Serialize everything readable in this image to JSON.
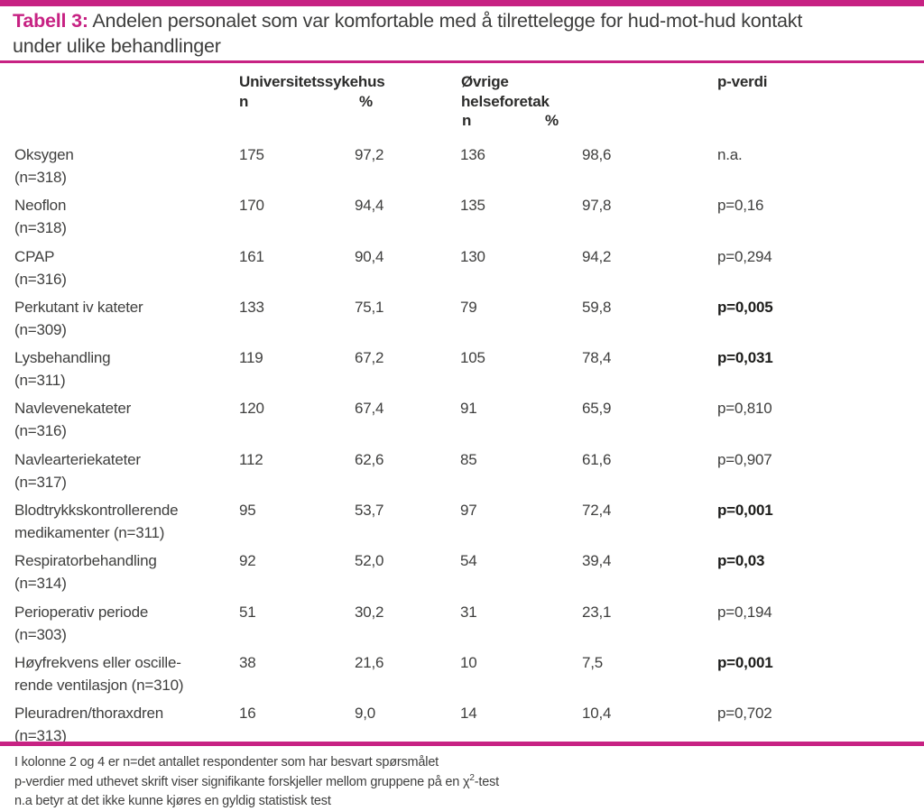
{
  "colors": {
    "accent": "#c72283"
  },
  "title": {
    "label": "Tabell 3:",
    "line1": " Andelen personalet som var komfortable med å tilrettelegge for hud-mot-hud kontakt",
    "line2": "under ulike behandlinger"
  },
  "header": {
    "group1": "Universitetssykehus",
    "group1_n": "n",
    "group1_pct": "%",
    "group2_line1": "Øvrige",
    "group2_line2": "helseforetak",
    "group2_n": "n",
    "group2_pct": "%",
    "pvalue": "p-verdi"
  },
  "table": {
    "rows": [
      {
        "label1": "Oksygen",
        "label2": "(n=318)",
        "n1": "175",
        "pct1": "97,2",
        "n2": "136",
        "pct2": "98,6",
        "p": "n.a.",
        "significant": false
      },
      {
        "label1": "Neoflon",
        "label2": "(n=318)",
        "n1": "170",
        "pct1": "94,4",
        "n2": "135",
        "pct2": "97,8",
        "p": "p=0,16",
        "significant": false
      },
      {
        "label1": "CPAP",
        "label2": "(n=316)",
        "n1": "161",
        "pct1": "90,4",
        "n2": "130",
        "pct2": "94,2",
        "p": "p=0,294",
        "significant": false
      },
      {
        "label1": "Perkutant iv kateter",
        "label2": "(n=309)",
        "n1": "133",
        "pct1": "75,1",
        "n2": "79",
        "pct2": "59,8",
        "p": "p=0,005",
        "significant": true
      },
      {
        "label1": "Lysbehandling",
        "label2": "(n=311)",
        "n1": "119",
        "pct1": "67,2",
        "n2": "105",
        "pct2": "78,4",
        "p": "p=0,031",
        "significant": true
      },
      {
        "label1": "Navlevenekateter",
        "label2": "(n=316)",
        "n1": "120",
        "pct1": "67,4",
        "n2": "91",
        "pct2": "65,9",
        "p": "p=0,810",
        "significant": false
      },
      {
        "label1": "Navlearteriekateter",
        "label2": "(n=317)",
        "n1": "112",
        "pct1": "62,6",
        "n2": "85",
        "pct2": "61,6",
        "p": "p=0,907",
        "significant": false
      },
      {
        "label1": "Blodtrykkskontrollerende",
        "label2": "medikamenter (n=311)",
        "n1": "95",
        "pct1": "53,7",
        "n2": "97",
        "pct2": "72,4",
        "p": "p=0,001",
        "significant": true
      },
      {
        "label1": "Respiratorbehandling",
        "label2": "(n=314)",
        "n1": "92",
        "pct1": "52,0",
        "n2": "54",
        "pct2": "39,4",
        "p": "p=0,03",
        "significant": true
      },
      {
        "label1": "Perioperativ periode",
        "label2": "(n=303)",
        "n1": "51",
        "pct1": "30,2",
        "n2": "31",
        "pct2": "23,1",
        "p": "p=0,194",
        "significant": false
      },
      {
        "label1": "Høyfrekvens eller oscille-",
        "label2": "rende ventilasjon (n=310)",
        "n1": "38",
        "pct1": "21,6",
        "n2": "10",
        "pct2": "7,5",
        "p": "p=0,001",
        "significant": true
      },
      {
        "label1": "Pleuradren/thoraxdren",
        "label2": "(n=313)",
        "n1": "16",
        "pct1": "9,0",
        "n2": "14",
        "pct2": "10,4",
        "p": "p=0,702",
        "significant": false
      }
    ]
  },
  "footnotes": {
    "line1": "I kolonne 2 og 4 er n=det antallet respondenter som har besvart spørsmålet",
    "line2_pre": "p-verdier med uthevet skrift viser signifikante forskjeller mellom gruppene på en χ",
    "line2_sup": "2",
    "line2_post": "-test",
    "line3": "n.a betyr at det ikke kunne kjøres en gyldig statistisk test"
  }
}
